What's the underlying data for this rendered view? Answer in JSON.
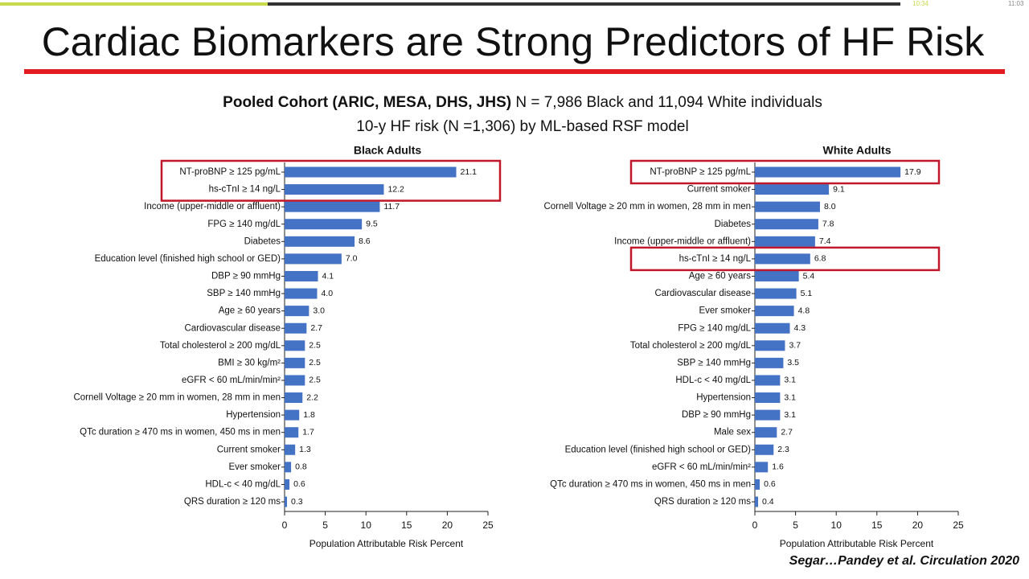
{
  "slide": {
    "title": "Cardiac Biomarkers are Strong Predictors of HF Risk",
    "subtitle_bold": "Pooled Cohort (ARIC, MESA, DHS, JHS)",
    "subtitle_rest": "N = 7,986 Black and  11,094 White individuals",
    "subtitle_line2": "10-y HF risk (N =1,306) by ML-based RSF model",
    "citation": "Segar…Pandey et al. Circulation 2020",
    "time_elapsed": "10:34",
    "time_total": "11:03"
  },
  "chart_data": [
    {
      "type": "hbar",
      "title": "Black Adults",
      "x_label": "Population Attributable Risk Percent",
      "color": "#4472c4",
      "categories": [
        "NT-proBNP ≥ 125 pg/mL",
        "hs-cTnI ≥ 14 ng/L",
        "Income (upper-middle or affluent)",
        "FPG ≥ 140 mg/dL",
        "Diabetes",
        "Education level (finished high school or GED)",
        "DBP ≥ 90 mmHg",
        "SBP ≥ 140 mmHg",
        "Age ≥ 60 years",
        "Cardiovascular disease",
        "Total cholesterol ≥ 200 mg/dL",
        "BMI ≥ 30 kg/m²",
        "eGFR < 60 mL/min/min²",
        "Cornell Voltage ≥ 20 mm in women, 28 mm in men",
        "Hypertension",
        "QTc duration ≥ 470 ms in women, 450 ms in men",
        "Current smoker",
        "Ever smoker",
        "HDL-c < 40 mg/dL",
        "QRS duration ≥ 120 ms"
      ],
      "values": [
        21.1,
        12.2,
        11.7,
        9.5,
        8.6,
        7.0,
        4.1,
        4.0,
        3.0,
        2.7,
        2.5,
        2.5,
        2.5,
        2.2,
        1.8,
        1.7,
        1.3,
        0.8,
        0.6,
        0.3
      ],
      "value_labels": [
        "21.1",
        "12.2",
        "11.7",
        "9.5",
        "8.6",
        "7.0",
        "4.1",
        "4.0",
        "3.0",
        "2.7",
        "2.5",
        "2.5",
        "2.5",
        "2.2",
        "1.8",
        "1.7",
        "1.3",
        "0.8",
        "0.6",
        "0.3"
      ],
      "xlim": [
        0,
        25
      ],
      "xticks": [
        0,
        5,
        10,
        15,
        20,
        25
      ]
    },
    {
      "type": "hbar",
      "title": "White Adults",
      "x_label": "Population Attributable Risk Percent",
      "color": "#4472c4",
      "categories": [
        "NT-proBNP ≥ 125 pg/mL",
        "Current smoker",
        "Cornell Voltage ≥ 20 mm in women, 28 mm in men",
        "Diabetes",
        "Income (upper-middle or affluent)",
        "hs-cTnI ≥ 14 ng/L",
        "Age ≥ 60 years",
        "Cardiovascular disease",
        "Ever smoker",
        "FPG ≥ 140 mg/dL",
        "Total cholesterol ≥ 200 mg/dL",
        "SBP ≥ 140 mmHg",
        "HDL-c < 40 mg/dL",
        "Hypertension",
        "DBP ≥ 90 mmHg",
        "Male sex",
        "Education level (finished high school or GED)",
        "eGFR < 60 mL/min/min²",
        "QTc duration ≥ 470 ms in women, 450 ms in men",
        "QRS duration ≥ 120 ms"
      ],
      "values": [
        17.9,
        9.1,
        8.0,
        7.8,
        7.4,
        6.8,
        5.4,
        5.1,
        4.8,
        4.3,
        3.7,
        3.5,
        3.1,
        3.1,
        3.1,
        2.7,
        2.3,
        1.6,
        0.6,
        0.4
      ],
      "value_labels": [
        "17.9",
        "9.1",
        "8.0",
        "7.8",
        "7.4",
        "6.8",
        "5.4",
        "5.1",
        "4.8",
        "4.3",
        "3.7",
        "3.5",
        "3.1",
        "3.1",
        "3.1",
        "2.7",
        "2.3",
        "1.6",
        "0.6",
        "0.4"
      ],
      "xlim": [
        0,
        25
      ],
      "xticks": [
        0,
        5,
        10,
        15,
        20,
        25
      ]
    }
  ]
}
